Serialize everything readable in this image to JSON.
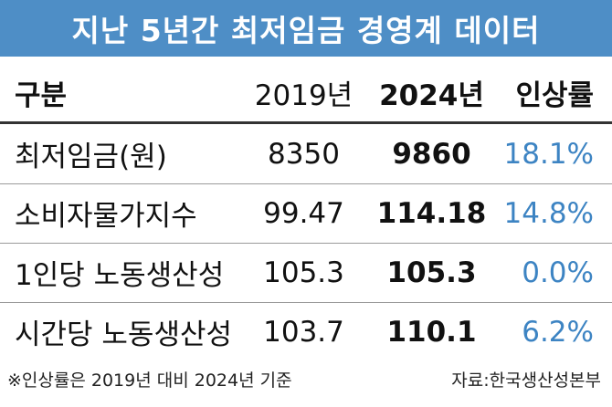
{
  "title": "지난 5년간 최저임금 경영계 데이터",
  "table": {
    "header": [
      "구분",
      "2019년",
      "2024년",
      "인상률"
    ],
    "rows": [
      [
        "최저임금(원)",
        "8350",
        "9860",
        "18.1%"
      ],
      [
        "소비자물가지수",
        "99.47",
        "114.18",
        "14.8%"
      ],
      [
        "1인당 노동생산성",
        "105.3",
        "105.3",
        "0.0%"
      ],
      [
        "시간당 노동생산성",
        "103.7",
        "110.1",
        "6.2%"
      ]
    ]
  },
  "footnote": "※인상률은 2019년 대비 2024년 기준",
  "source": "자료:한국생산성본부"
}
